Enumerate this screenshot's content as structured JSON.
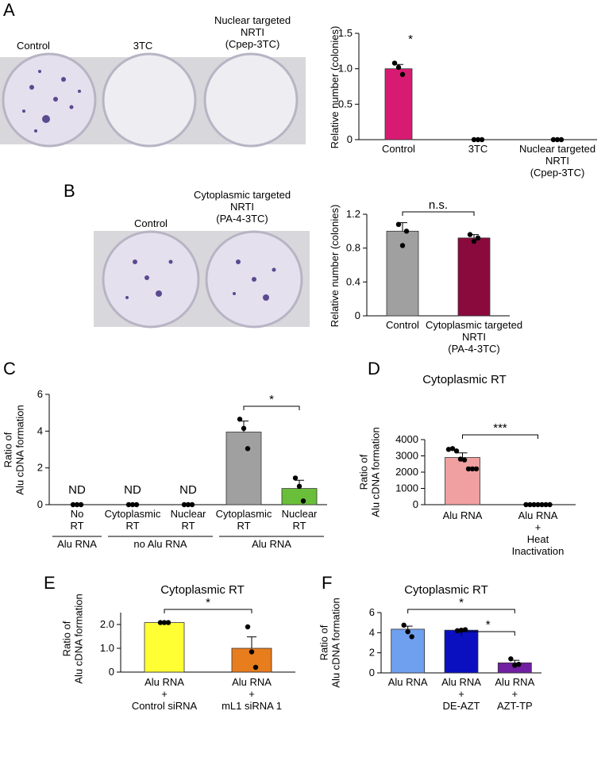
{
  "panel_labels": [
    "A",
    "B",
    "C",
    "D",
    "E",
    "F"
  ],
  "photos": [
    {
      "labels": [
        "Control",
        "3TC",
        "Nuclear targeted\nNRTI\n(Cpep-3TC)"
      ]
    },
    {
      "labels": [
        "Control",
        "Cytoplasmic targeted\nNRTI\n(PA-4-3TC)"
      ]
    }
  ],
  "chart_data": [
    {
      "type": "bar",
      "ylabel": "Relative number (colonies)",
      "categories": [
        "Control",
        "3TC",
        "Nuclear targeted\nNRTI\n(Cpep-3TC)"
      ],
      "values": [
        1.0,
        0,
        0
      ],
      "errors": [
        0.06,
        0,
        0
      ],
      "points": [
        [
          1.08,
          1.02,
          0.92
        ],
        [
          0,
          0,
          0
        ],
        [
          0,
          0,
          0
        ]
      ],
      "colors": [
        "#d81b72",
        "#d81b72",
        "#d81b72"
      ],
      "ylim": [
        0,
        1.5
      ],
      "yticks": [
        0,
        0.5,
        {
          "value": 1,
          "label": "1.0"
        },
        1.5
      ],
      "annotations": [
        "*"
      ]
    },
    {
      "type": "bar",
      "ylabel": "Relative number (colonies)",
      "categories": [
        "Control",
        "Cytoplasmic targeted\nNRTI\n(PA-4-3TC)"
      ],
      "values": [
        1.0,
        0.92
      ],
      "errors": [
        0.1,
        0.04
      ],
      "points": [
        [
          1.08,
          0.83,
          1.0
        ],
        [
          0.96,
          0.88,
          0.92
        ]
      ],
      "colors": [
        "#a0a0a0",
        "#8b0a3e"
      ],
      "ylim": [
        0,
        1.2
      ],
      "yticks": [
        0,
        0.4,
        0.8,
        1.2
      ],
      "annotations": [
        "n.s."
      ]
    },
    {
      "type": "bar",
      "ylabel": "Ratio of\nAlu cDNA formation",
      "categories": [
        "No\nRT",
        "Cytoplasmic\nRT",
        "Nuclear\nRT",
        "Cytoplasmic\nRT",
        "Nuclear\nRT"
      ],
      "values": [
        0,
        0,
        0,
        3.95,
        0.88
      ],
      "errors": [
        0,
        0,
        0,
        0.6,
        0.45
      ],
      "value_labels": [
        "ND",
        "ND",
        "ND",
        null,
        null
      ],
      "points": [
        [
          0,
          0,
          0
        ],
        [
          0,
          0,
          0
        ],
        [
          0,
          0,
          0
        ],
        [
          4.65,
          4.15,
          3.05
        ],
        [
          1.45,
          1.0,
          0.2
        ]
      ],
      "colors": [
        "#a0a0a0",
        "#a0a0a0",
        "#a0a0a0",
        "#a0a0a0",
        "#6abf3a"
      ],
      "groups": [
        "Alu RNA",
        "no Alu RNA",
        "Alu RNA"
      ],
      "ylim": [
        0,
        6
      ],
      "yticks": [
        0,
        2,
        4,
        6
      ],
      "annotations": [
        "*"
      ]
    },
    {
      "type": "bar",
      "title": "Cytoplasmic RT",
      "ylabel": "Ratio of\nAlu cDNA formation",
      "categories": [
        "Alu RNA",
        "Alu RNA\n+\nHeat\nInactivation"
      ],
      "values": [
        2900,
        0
      ],
      "errors": [
        280,
        0
      ],
      "points": [
        [
          3400,
          3450,
          3300,
          2800,
          2750,
          2200,
          2200,
          2200
        ],
        [
          0,
          0,
          0,
          0,
          0,
          0,
          0
        ]
      ],
      "colors": [
        "#f0a0a0",
        "#f0a0a0"
      ],
      "ylim": [
        0,
        4000
      ],
      "yticks": [
        0,
        1000,
        2000,
        3000,
        4000
      ],
      "annotations": [
        "***"
      ]
    },
    {
      "type": "bar",
      "title": "Cytoplasmic RT",
      "ylabel": "Ratio of\nAlu cDNA formation",
      "categories": [
        "Alu RNA\n+\nControl siRNA",
        "Alu RNA\n+\nmL1 siRNA 1"
      ],
      "values": [
        2.08,
        1.0
      ],
      "errors": [
        0,
        0.48
      ],
      "points": [
        [
          2.08,
          2.08,
          2.08
        ],
        [
          1.9,
          0.85,
          0.2
        ]
      ],
      "colors": [
        "#ffff33",
        "#e87d1e"
      ],
      "ylim": [
        0,
        2.5
      ],
      "yticks": [
        0,
        {
          "value": 1,
          "label": "1.0"
        },
        {
          "value": 2,
          "label": "2.0"
        }
      ],
      "annotations": [
        "*"
      ]
    },
    {
      "type": "bar",
      "title": "Cytoplasmic RT",
      "ylabel": "Ratio of\nAlu cDNA formation",
      "categories": [
        "Alu RNA",
        "Alu RNA\n+\nDE-AZT",
        "Alu RNA\n+\nAZT-TP"
      ],
      "values": [
        4.35,
        4.25,
        1.0
      ],
      "errors": [
        0.3,
        0.05,
        0.25
      ],
      "points": [
        [
          4.75,
          4.1,
          3.6
        ],
        [
          4.2,
          4.25,
          4.3
        ],
        [
          1.4,
          0.75,
          0.85
        ]
      ],
      "colors": [
        "#6fa0ef",
        "#0a10c0",
        "#7020a0"
      ],
      "ylim": [
        0,
        6
      ],
      "yticks": [
        0,
        2,
        4,
        6
      ],
      "annotations": [
        "*",
        "*"
      ]
    }
  ]
}
